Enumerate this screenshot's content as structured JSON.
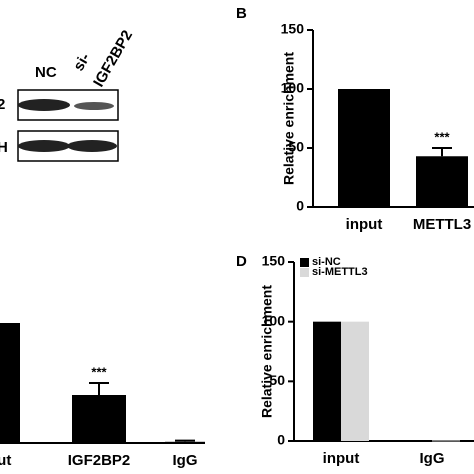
{
  "blot": {
    "lanes": [
      "NC",
      "si-",
      "IGF2BP2"
    ],
    "rows": [
      "2",
      "H"
    ]
  },
  "chart_data": [
    {
      "type": "bar",
      "panel_label": "B",
      "ylabel": "Relative enrichment",
      "categories": [
        "input",
        "METTL3"
      ],
      "values": [
        100,
        43
      ],
      "errors": [
        0,
        7
      ],
      "significance": [
        null,
        "***"
      ],
      "color": "#000000",
      "ylim": [
        0,
        150
      ],
      "yticks": [
        0,
        50,
        100,
        150
      ]
    },
    {
      "type": "bar",
      "categories": [
        "input",
        "IGF2BP2",
        "IgG"
      ],
      "values": [
        100,
        40,
        1
      ],
      "errors": [
        0,
        10,
        1
      ],
      "significance": [
        null,
        "***",
        null
      ],
      "color": "#000000",
      "ylim": [
        0,
        150
      ]
    },
    {
      "type": "grouped_bar",
      "panel_label": "D",
      "ylabel": "Relative enrichment",
      "categories": [
        "input",
        "IgG"
      ],
      "series": [
        {
          "name": "si-NC",
          "color": "#000000",
          "values": [
            100,
            0.5
          ]
        },
        {
          "name": "si-METTL3",
          "color": "#d9d9d9",
          "values": [
            100,
            0.5
          ]
        }
      ],
      "ylim": [
        0,
        150
      ],
      "yticks": [
        0,
        50,
        100,
        150
      ]
    }
  ]
}
